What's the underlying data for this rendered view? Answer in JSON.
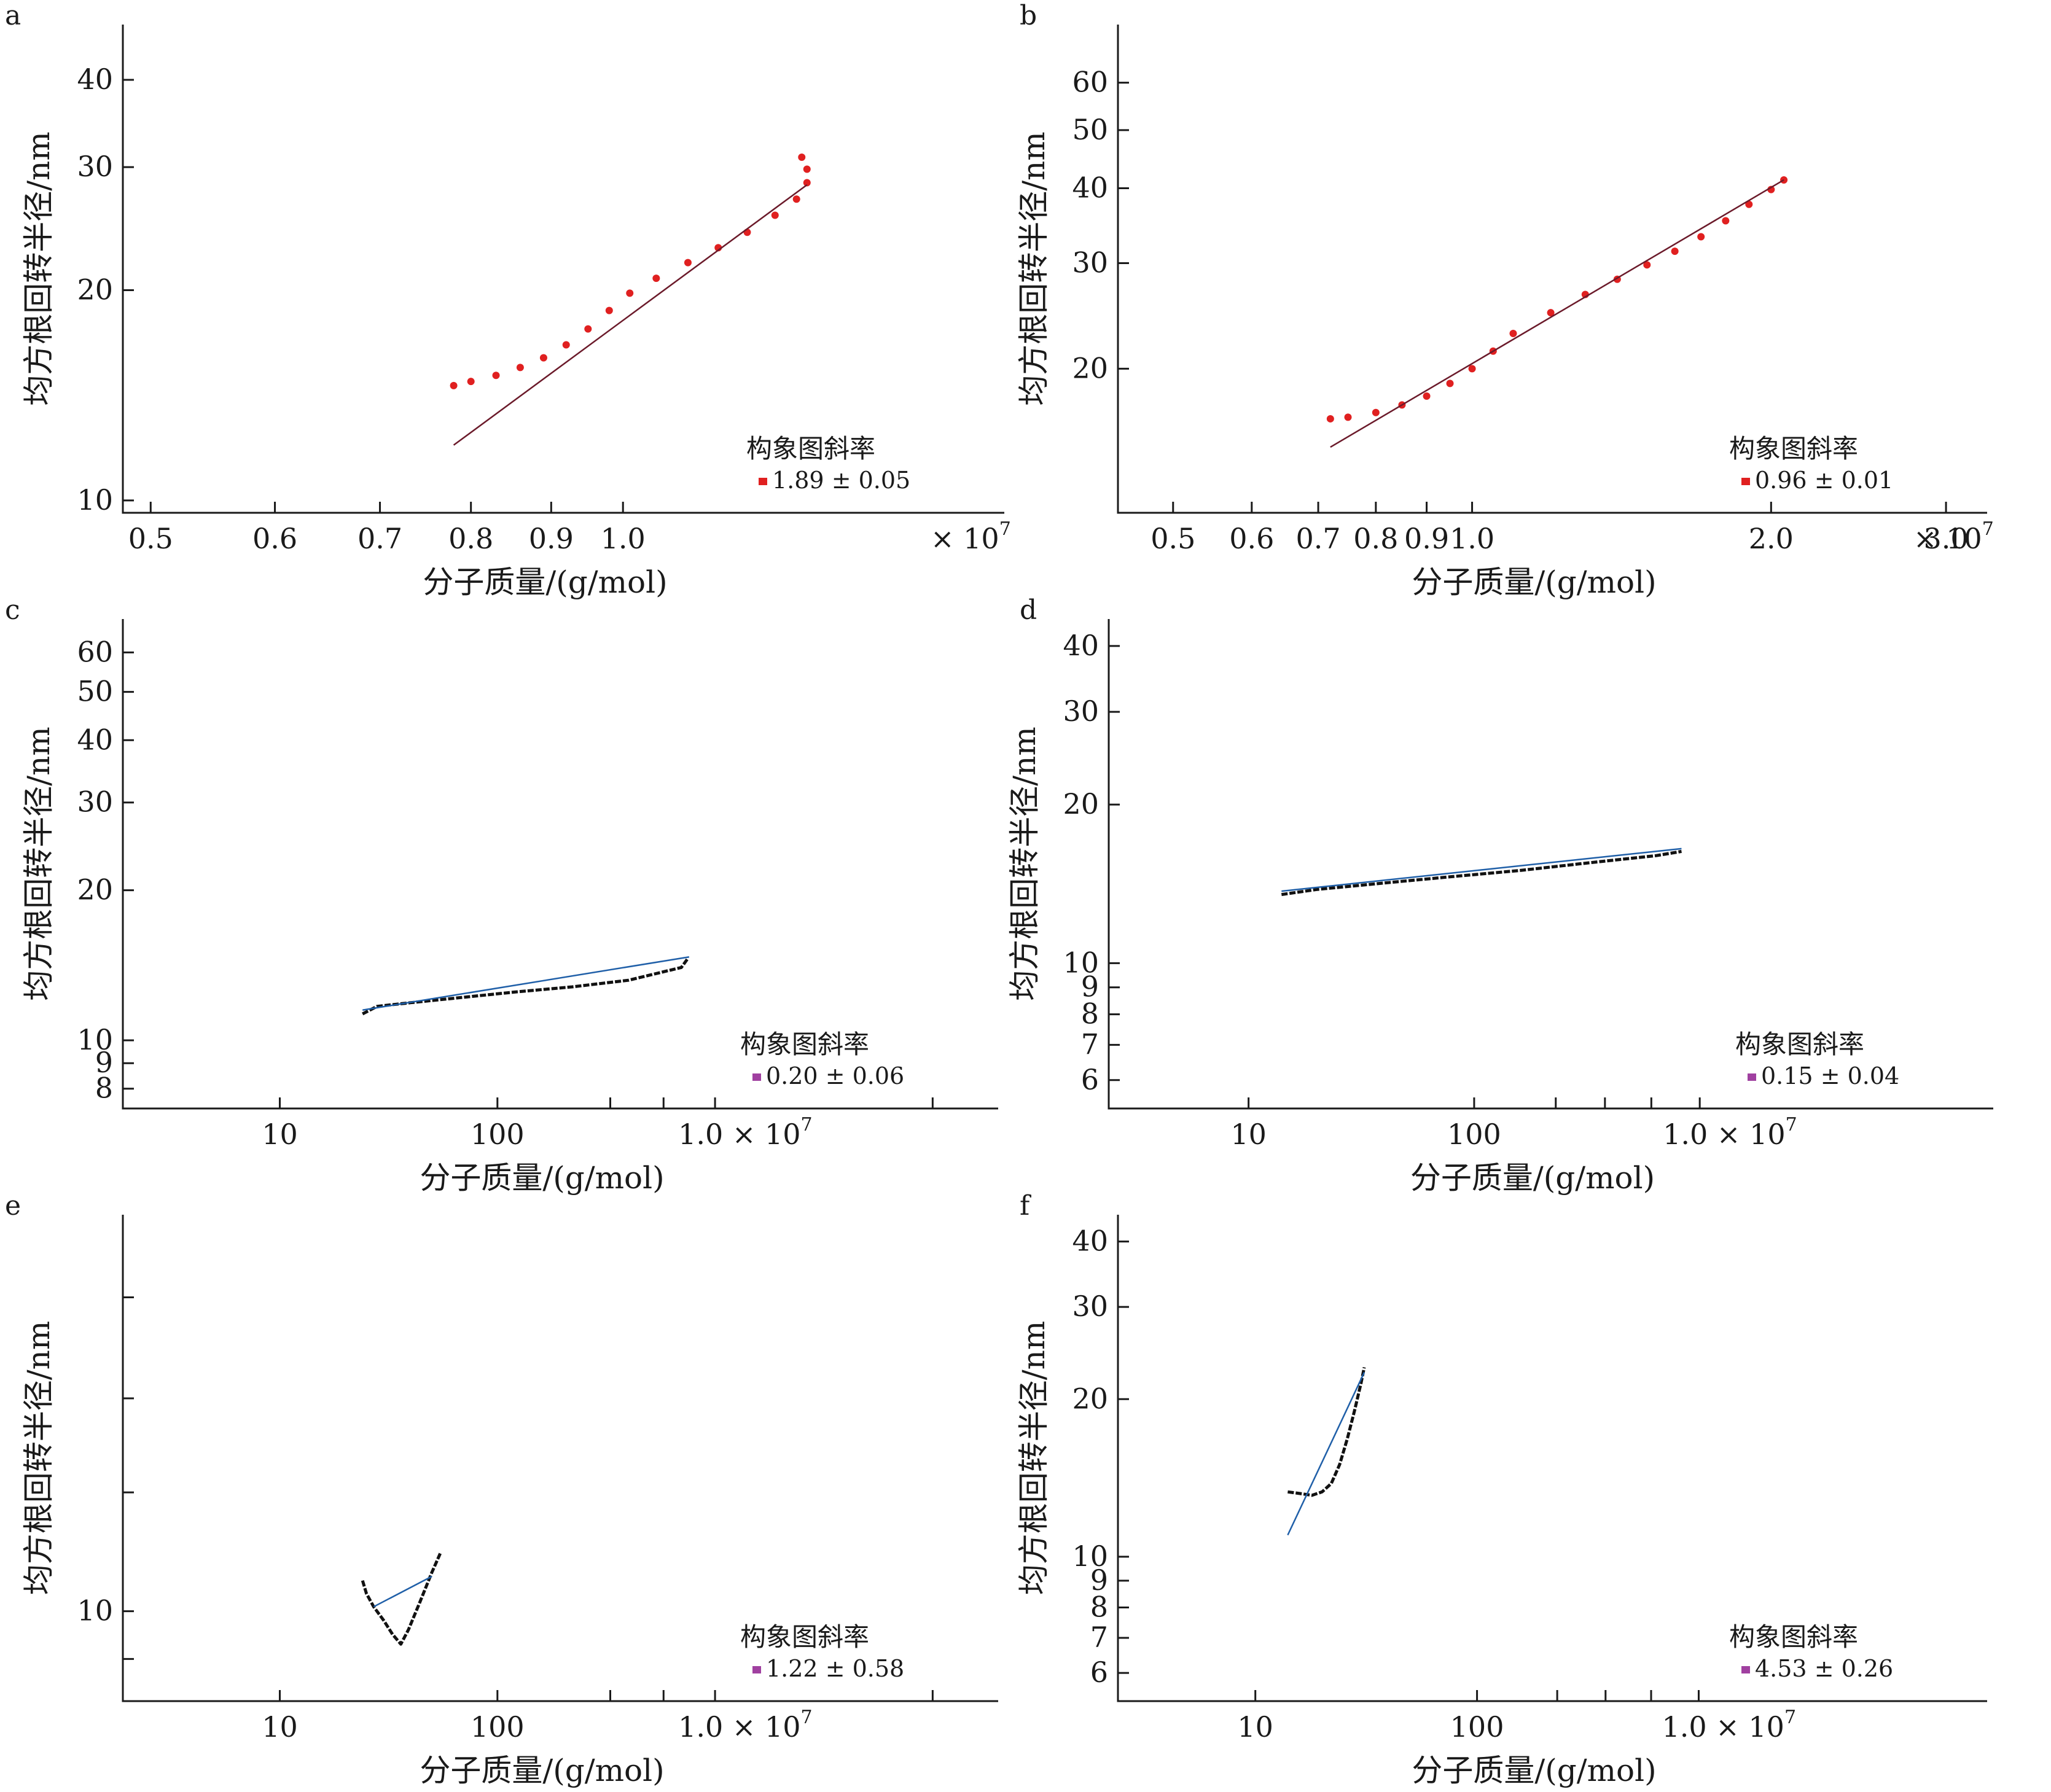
{
  "chart_data": [
    {
      "panel": "a",
      "type": "scatter",
      "xlabel": "分子质量/(g/mol)",
      "ylabel": "均方根回转半径/nm",
      "x_scale": "log",
      "y_scale": "log",
      "x_multiplier_label": "× 10",
      "x_multiplier_exp": "7",
      "xlim": [
        0.48,
        1.75
      ],
      "ylim": [
        9.6,
        48
      ],
      "x_ticks": [
        {
          "v": 0.5,
          "label": "0.5"
        },
        {
          "v": 0.6,
          "label": "0.6"
        },
        {
          "v": 0.7,
          "label": "0.7"
        },
        {
          "v": 0.8,
          "label": "0.8"
        },
        {
          "v": 0.9,
          "label": "0.9"
        },
        {
          "v": 1.0,
          "label": "1.0"
        }
      ],
      "y_ticks": [
        {
          "v": 10,
          "label": "10"
        },
        {
          "v": 20,
          "label": "20"
        },
        {
          "v": 30,
          "label": "30"
        },
        {
          "v": 40,
          "label": "40"
        }
      ],
      "x_minor_ticks": [],
      "y_minor_ticks": [],
      "x_label_offset": 0,
      "legend": {
        "title": "构象图斜率",
        "value": "1.89 ± 0.05",
        "marker_color": "#e02020"
      },
      "data_color": "#e02020",
      "data_style": "dots",
      "fit_color": "#6b1a2a",
      "data": [
        [
          0.78,
          14.6
        ],
        [
          0.8,
          14.8
        ],
        [
          0.83,
          15.1
        ],
        [
          0.86,
          15.5
        ],
        [
          0.89,
          16.0
        ],
        [
          0.92,
          16.7
        ],
        [
          0.95,
          17.6
        ],
        [
          0.98,
          18.7
        ],
        [
          1.01,
          19.8
        ],
        [
          1.05,
          20.8
        ],
        [
          1.1,
          21.9
        ],
        [
          1.15,
          23.0
        ],
        [
          1.2,
          24.2
        ],
        [
          1.25,
          25.6
        ],
        [
          1.29,
          27.0
        ],
        [
          1.31,
          28.5
        ],
        [
          1.31,
          29.8
        ],
        [
          1.3,
          31.0
        ]
      ],
      "fit": [
        [
          0.78,
          12.0
        ],
        [
          1.31,
          28.3
        ]
      ]
    },
    {
      "panel": "b",
      "type": "scatter",
      "xlabel": "分子质量/(g/mol)",
      "ylabel": "均方根回转半径/nm",
      "x_scale": "log",
      "y_scale": "log",
      "x_multiplier_label": "× 10",
      "x_multiplier_exp": "7",
      "xlim": [
        0.44,
        3.3
      ],
      "ylim": [
        11.5,
        75
      ],
      "x_ticks": [
        {
          "v": 0.5,
          "label": "0.5"
        },
        {
          "v": 0.6,
          "label": "0.6"
        },
        {
          "v": 0.7,
          "label": "0.7"
        },
        {
          "v": 0.8,
          "label": "0.8"
        },
        {
          "v": 0.9,
          "label": "0.9"
        },
        {
          "v": 1.0,
          "label": "1.0"
        },
        {
          "v": 2.0,
          "label": "2.0"
        },
        {
          "v": 3.0,
          "label": "3.0"
        }
      ],
      "y_ticks": [
        {
          "v": 20,
          "label": "20"
        },
        {
          "v": 30,
          "label": "30"
        },
        {
          "v": 40,
          "label": "40"
        },
        {
          "v": 50,
          "label": "50"
        },
        {
          "v": 60,
          "label": "60"
        }
      ],
      "x_minor_ticks": [],
      "y_minor_ticks": [],
      "x_label_offset": 1,
      "legend": {
        "title": "构象图斜率",
        "value": "0.96 ± 0.01",
        "marker_color": "#e02020"
      },
      "data_color": "#e02020",
      "data_style": "dots",
      "fit_color": "#6b1a2a",
      "data": [
        [
          0.72,
          16.5
        ],
        [
          0.75,
          16.6
        ],
        [
          0.8,
          16.9
        ],
        [
          0.85,
          17.4
        ],
        [
          0.9,
          18.0
        ],
        [
          0.95,
          18.9
        ],
        [
          1.0,
          20.0
        ],
        [
          1.05,
          21.4
        ],
        [
          1.1,
          22.9
        ],
        [
          1.2,
          24.8
        ],
        [
          1.3,
          26.6
        ],
        [
          1.4,
          28.2
        ],
        [
          1.5,
          29.8
        ],
        [
          1.6,
          31.4
        ],
        [
          1.7,
          33.2
        ],
        [
          1.8,
          35.3
        ],
        [
          1.9,
          37.6
        ],
        [
          2.0,
          39.8
        ],
        [
          2.06,
          41.3
        ]
      ],
      "fit": [
        [
          0.72,
          14.8
        ],
        [
          2.06,
          41.3
        ]
      ]
    },
    {
      "panel": "c",
      "type": "scatter",
      "xlabel": "分子质量/(g/mol)",
      "ylabel": "均方根回转半径/nm",
      "x_scale": "log",
      "y_scale": "log",
      "x_multiplier_label": "",
      "x_multiplier_exp": "",
      "xlim": [
        1.9,
        20000
      ],
      "ylim": [
        7.3,
        70
      ],
      "x_ticks": [
        {
          "v": 10,
          "label": "10"
        },
        {
          "v": 100,
          "label": "100"
        },
        {
          "v": 1000,
          "label": "1.0 × 10"
        }
      ],
      "x_tick_exp": {
        "1000": "7"
      },
      "y_ticks": [
        {
          "v": 8,
          "label": "8"
        },
        {
          "v": 9,
          "label": "9"
        },
        {
          "v": 10,
          "label": "10"
        },
        {
          "v": 20,
          "label": "20"
        },
        {
          "v": 30,
          "label": "30"
        },
        {
          "v": 40,
          "label": "40"
        },
        {
          "v": 50,
          "label": "50"
        },
        {
          "v": 60,
          "label": "60"
        }
      ],
      "x_minor_ticks": [
        330,
        580,
        10000
      ],
      "y_minor_ticks": [],
      "x_label_offset": 0,
      "legend": {
        "title": "构象图斜率",
        "value": "0.20 ± 0.06",
        "marker_color": "#a040a0"
      },
      "data_color": "#111111",
      "data_style": "line",
      "fit_color": "#1f5fa8",
      "data": [
        [
          24,
          11.3
        ],
        [
          28,
          11.7
        ],
        [
          40,
          11.9
        ],
        [
          70,
          12.2
        ],
        [
          120,
          12.5
        ],
        [
          220,
          12.8
        ],
        [
          400,
          13.2
        ],
        [
          700,
          14.0
        ],
        [
          750,
          14.6
        ]
      ],
      "fit": [
        [
          24,
          11.5
        ],
        [
          760,
          14.7
        ]
      ]
    },
    {
      "panel": "d",
      "type": "scatter",
      "xlabel": "分子质量/(g/mol)",
      "ylabel": "均方根回转半径/nm",
      "x_scale": "log",
      "y_scale": "log",
      "x_multiplier_label": "",
      "x_multiplier_exp": "",
      "xlim": [
        2.4,
        20000
      ],
      "ylim": [
        5.3,
        45
      ],
      "x_ticks": [
        {
          "v": 10,
          "label": "10"
        },
        {
          "v": 100,
          "label": "100"
        },
        {
          "v": 1000,
          "label": "1.0 × 10"
        }
      ],
      "x_tick_exp": {
        "1000": "7"
      },
      "y_ticks": [
        {
          "v": 6,
          "label": "6"
        },
        {
          "v": 7,
          "label": "7"
        },
        {
          "v": 8,
          "label": "8"
        },
        {
          "v": 9,
          "label": "9"
        },
        {
          "v": 10,
          "label": "10"
        },
        {
          "v": 20,
          "label": "20"
        },
        {
          "v": 30,
          "label": "30"
        },
        {
          "v": 40,
          "label": "40"
        }
      ],
      "x_minor_ticks": [
        230,
        380,
        610
      ],
      "y_minor_ticks": [],
      "x_label_offset": 0,
      "legend": {
        "title": "构象图斜率",
        "value": "0.15 ± 0.04",
        "marker_color": "#a040a0"
      },
      "data_color": "#111111",
      "data_style": "line",
      "fit_color": "#1f5fa8",
      "data": [
        [
          14,
          13.5
        ],
        [
          20,
          13.8
        ],
        [
          40,
          14.2
        ],
        [
          80,
          14.6
        ],
        [
          160,
          15.0
        ],
        [
          320,
          15.5
        ],
        [
          640,
          16.0
        ],
        [
          830,
          16.3
        ]
      ],
      "fit": [
        [
          14,
          13.7
        ],
        [
          830,
          16.5
        ]
      ]
    },
    {
      "panel": "e",
      "type": "scatter",
      "xlabel": "分子质量/(g/mol)",
      "ylabel": "均方根回转半径/nm",
      "x_scale": "log",
      "y_scale": "log",
      "x_multiplier_label": "",
      "x_multiplier_exp": "",
      "xlim": [
        1.9,
        20000
      ],
      "ylim": [
        8.2,
        24
      ],
      "x_ticks": [
        {
          "v": 10,
          "label": "10"
        },
        {
          "v": 100,
          "label": "100"
        },
        {
          "v": 1000,
          "label": "1.0 × 10"
        }
      ],
      "x_tick_exp": {
        "1000": "7"
      },
      "y_ticks": [
        {
          "v": 10,
          "label": "10"
        }
      ],
      "x_minor_ticks": [
        330,
        580,
        10000
      ],
      "y_minor_ticks": [
        9,
        13,
        16,
        20
      ],
      "x_label_offset": 0,
      "legend": {
        "title": "构象图斜率",
        "value": "1.22 ± 0.58",
        "marker_color": "#a040a0"
      },
      "data_color": "#111111",
      "data_style": "line",
      "fit_color": "#1f5fa8",
      "data": [
        [
          24,
          10.7
        ],
        [
          25,
          10.4
        ],
        [
          27,
          10.1
        ],
        [
          30,
          9.8
        ],
        [
          33,
          9.5
        ],
        [
          36,
          9.3
        ],
        [
          39,
          9.6
        ],
        [
          44,
          10.2
        ],
        [
          50,
          10.9
        ],
        [
          55,
          11.4
        ]
      ],
      "fit": [
        [
          27,
          10.1
        ],
        [
          50,
          10.8
        ]
      ]
    },
    {
      "panel": "f",
      "type": "scatter",
      "xlabel": "分子质量/(g/mol)",
      "ylabel": "均方根回转半径/nm",
      "x_scale": "log",
      "y_scale": "log",
      "x_multiplier_label": "",
      "x_multiplier_exp": "",
      "xlim": [
        2.4,
        20000
      ],
      "ylim": [
        5.3,
        45
      ],
      "x_ticks": [
        {
          "v": 10,
          "label": "10"
        },
        {
          "v": 100,
          "label": "100"
        },
        {
          "v": 1000,
          "label": "1.0 × 10"
        }
      ],
      "x_tick_exp": {
        "1000": "7"
      },
      "y_ticks": [
        {
          "v": 6,
          "label": "6"
        },
        {
          "v": 7,
          "label": "7"
        },
        {
          "v": 8,
          "label": "8"
        },
        {
          "v": 9,
          "label": "9"
        },
        {
          "v": 10,
          "label": "10"
        },
        {
          "v": 20,
          "label": "20"
        },
        {
          "v": 30,
          "label": "30"
        },
        {
          "v": 40,
          "label": "40"
        }
      ],
      "x_minor_ticks": [
        230,
        380,
        610
      ],
      "y_minor_ticks": [],
      "x_label_offset": 0,
      "legend": {
        "title": "构象图斜率",
        "value": "4.53 ± 0.26",
        "marker_color": "#a040a0"
      },
      "data_color": "#111111",
      "data_style": "line",
      "fit_color": "#1f5fa8",
      "data": [
        [
          14,
          13.3
        ],
        [
          16,
          13.2
        ],
        [
          18,
          13.1
        ],
        [
          20,
          13.3
        ],
        [
          22,
          13.8
        ],
        [
          24,
          15.0
        ],
        [
          26,
          16.8
        ],
        [
          28,
          19.0
        ],
        [
          30,
          21.5
        ],
        [
          31,
          23.0
        ]
      ],
      "fit": [
        [
          14,
          11.0
        ],
        [
          31,
          22.5
        ]
      ]
    }
  ]
}
